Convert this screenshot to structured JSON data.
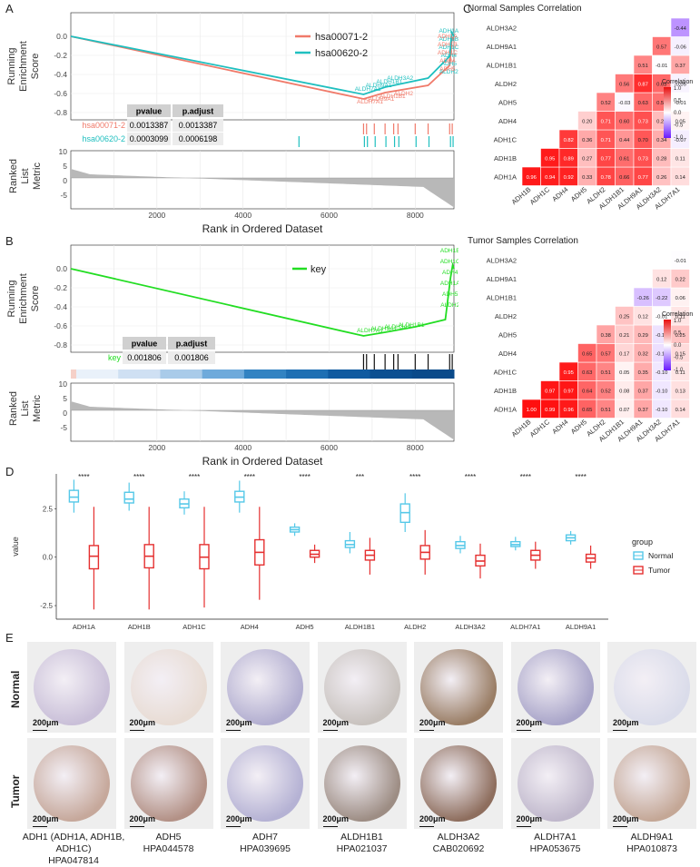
{
  "panels": {
    "A": "A",
    "B": "B",
    "C": "C",
    "D": "D",
    "E": "E"
  },
  "gsea_A": {
    "y_running": [
      "Running",
      "Enrichment",
      "Score"
    ],
    "y_ranked": [
      "Ranked",
      "List",
      "Metric"
    ],
    "x_label": "Rank in Ordered Dataset",
    "x_ticks": [
      "2000",
      "4000",
      "6000",
      "8000"
    ],
    "y_ticks": [
      "0.0",
      "-0.2",
      "-0.4",
      "-0.6",
      "-0.8"
    ],
    "rank_y_ticks": [
      "10",
      "5",
      "0",
      "-5"
    ],
    "legend": [
      {
        "name": "hsa00071-2",
        "color": "#f07a6a"
      },
      {
        "name": "hsa00620-2",
        "color": "#1fbfbf"
      }
    ],
    "table": {
      "headers": [
        "pvalue",
        "p.adjust"
      ],
      "rows": [
        {
          "name": "hsa00071-2",
          "pvalue": "0.0013387",
          "padjust": "0.0013387"
        },
        {
          "name": "hsa00620-2",
          "pvalue": "0.0003099",
          "padjust": "0.0006198"
        }
      ]
    },
    "gene_labels_cyan": [
      "ADH1A",
      "ADH1B",
      "ADH1C",
      "ADH4",
      "ADH5",
      "ALDH2",
      "ALDH3A2",
      "ALDH1B1",
      "ALDH9A1",
      "ALDH7A1"
    ],
    "gene_labels_red": [
      "ADH1A",
      "ADH1B",
      "ADH1C",
      "ADH4",
      "ADH5",
      "ALDH2",
      "ALDH1B1",
      "ALDH9A1",
      "ALDH7A1"
    ]
  },
  "gsea_B": {
    "y_running": [
      "Running",
      "Enrichment",
      "Score"
    ],
    "y_ranked": [
      "Ranked",
      "List",
      "Metric"
    ],
    "x_label": "Rank in Ordered Dataset",
    "x_ticks": [
      "2000",
      "4000",
      "6000",
      "8000"
    ],
    "y_ticks": [
      "0.0",
      "-0.2",
      "-0.4",
      "-0.6",
      "-0.8"
    ],
    "rank_y_ticks": [
      "10",
      "5",
      "0",
      "-5"
    ],
    "legend": [
      {
        "name": "key",
        "color": "#22dd22"
      }
    ],
    "table": {
      "headers": [
        "pvalue",
        "p.adjust"
      ],
      "rows": [
        {
          "name": "key",
          "pvalue": "0.001806",
          "padjust": "0.001806"
        }
      ]
    },
    "gene_labels": [
      "ADH1B",
      "ADH1C",
      "ADH4",
      "ADH1A",
      "ADH5",
      "ALDH2",
      "ALDH1B1",
      "ALDH3A2",
      "ALDH9A1",
      "ALDH7A1"
    ]
  },
  "corr_normal": {
    "title": "Normal Samples Correlation",
    "genes_x": [
      "ADH1B",
      "ADH1C",
      "ADH4",
      "ADH5",
      "ALDH2",
      "ALDH1B1",
      "ALDH9A1",
      "ALDH3A2",
      "ALDH7A1"
    ],
    "genes_y": [
      "ADH1A",
      "ADH1B",
      "ADH1C",
      "ADH4",
      "ADH5",
      "ALDH2",
      "ALDH1B1",
      "ALDH9A1",
      "ALDH3A2"
    ],
    "rows": [
      [
        0.96,
        0.94,
        0.92,
        0.33,
        0.78,
        0.66,
        0.77,
        0.26,
        0.14
      ],
      [
        null,
        0.95,
        0.89,
        0.27,
        0.77,
        0.61,
        0.73,
        0.28,
        0.11
      ],
      [
        null,
        null,
        0.82,
        0.36,
        0.71,
        0.44,
        0.7,
        0.34,
        -0.07
      ],
      [
        null,
        null,
        null,
        0.2,
        0.71,
        0.6,
        0.73,
        0.28,
        0.05
      ],
      [
        null,
        null,
        null,
        null,
        0.52,
        -0.03,
        0.63,
        0.59,
        -0.01
      ],
      [
        null,
        null,
        null,
        null,
        null,
        0.56,
        0.87,
        0.63,
        -0.05
      ],
      [
        null,
        null,
        null,
        null,
        null,
        null,
        0.51,
        -0.01,
        0.37
      ],
      [
        null,
        null,
        null,
        null,
        null,
        null,
        null,
        0.57,
        -0.06
      ],
      [
        null,
        null,
        null,
        null,
        null,
        null,
        null,
        null,
        -0.44
      ]
    ],
    "legend_title": "Correlation",
    "legend_ticks": [
      "1.0",
      "0.5",
      "0.0",
      "-0.5",
      "-1.0"
    ]
  },
  "corr_tumor": {
    "title": "Tumor Samples Correlation",
    "genes_x": [
      "ADH1B",
      "ADH1C",
      "ADH4",
      "ADH5",
      "ALDH2",
      "ALDH1B1",
      "ALDH9A1",
      "ALDH3A2",
      "ALDH7A1"
    ],
    "genes_y": [
      "ADH1A",
      "ADH1B",
      "ADH1C",
      "ADH4",
      "ADH5",
      "ALDH2",
      "ALDH1B1",
      "ALDH9A1",
      "ALDH3A2"
    ],
    "rows": [
      [
        1.0,
        0.99,
        0.96,
        0.65,
        0.51,
        0.07,
        0.37,
        -0.1,
        0.14
      ],
      [
        null,
        0.97,
        0.97,
        0.64,
        0.52,
        0.08,
        0.37,
        -0.1,
        0.13
      ],
      [
        null,
        null,
        0.95,
        0.63,
        0.51,
        0.05,
        0.35,
        -0.1,
        0.11
      ],
      [
        null,
        null,
        null,
        0.65,
        0.57,
        0.17,
        0.32,
        -0.13,
        0.15
      ],
      [
        null,
        null,
        null,
        null,
        0.38,
        0.21,
        0.29,
        -0.12,
        0.25
      ],
      [
        null,
        null,
        null,
        null,
        null,
        0.25,
        0.12,
        -0.01,
        0.11
      ],
      [
        null,
        null,
        null,
        null,
        null,
        null,
        -0.26,
        -0.22,
        0.06
      ],
      [
        null,
        null,
        null,
        null,
        null,
        null,
        null,
        0.12,
        0.22
      ],
      [
        null,
        null,
        null,
        null,
        null,
        null,
        null,
        null,
        -0.01
      ]
    ],
    "legend_title": "Correlation",
    "legend_ticks": [
      "1.0",
      "0.5",
      "0.0",
      "-0.5",
      "-1.0"
    ]
  },
  "chart_data": {
    "type": "box",
    "categories": [
      "ADH1A",
      "ADH1B",
      "ADH1C",
      "ADH4",
      "ADH5",
      "ALDH1B1",
      "ALDH2",
      "ALDH3A2",
      "ALDH7A1",
      "ALDH9A1"
    ],
    "significance": [
      "****",
      "****",
      "****",
      "****",
      "****",
      "***",
      "****",
      "****",
      "****",
      "****"
    ],
    "ylabel": "value",
    "y_ticks": [
      "2.5",
      "0.0",
      "-2.5"
    ],
    "ylim": [
      -3.2,
      4.3
    ],
    "legend_title": "group",
    "series": [
      {
        "name": "Normal",
        "color": "#55c8e8",
        "boxes": [
          {
            "min": 2.3,
            "q1": 2.85,
            "median": 3.1,
            "q3": 3.45,
            "max": 4.0
          },
          {
            "min": 2.4,
            "q1": 2.8,
            "median": 3.0,
            "q3": 3.35,
            "max": 3.85
          },
          {
            "min": 2.2,
            "q1": 2.55,
            "median": 2.75,
            "q3": 3.0,
            "max": 3.4
          },
          {
            "min": 2.3,
            "q1": 2.85,
            "median": 3.1,
            "q3": 3.4,
            "max": 3.95
          },
          {
            "min": 1.1,
            "q1": 1.3,
            "median": 1.42,
            "q3": 1.55,
            "max": 1.75
          },
          {
            "min": 0.2,
            "q1": 0.5,
            "median": 0.65,
            "q3": 0.85,
            "max": 1.3
          },
          {
            "min": 1.3,
            "q1": 1.8,
            "median": 2.3,
            "q3": 2.75,
            "max": 3.3
          },
          {
            "min": 0.2,
            "q1": 0.45,
            "median": 0.6,
            "q3": 0.8,
            "max": 1.1
          },
          {
            "min": 0.35,
            "q1": 0.55,
            "median": 0.65,
            "q3": 0.8,
            "max": 1.05
          },
          {
            "min": 0.65,
            "q1": 0.85,
            "median": 1.0,
            "q3": 1.15,
            "max": 1.35
          }
        ]
      },
      {
        "name": "Tumor",
        "color": "#e53030",
        "boxes": [
          {
            "min": -2.7,
            "q1": -0.6,
            "median": 0.05,
            "q3": 0.6,
            "max": 2.6
          },
          {
            "min": -2.7,
            "q1": -0.55,
            "median": 0.05,
            "q3": 0.65,
            "max": 2.6
          },
          {
            "min": -2.6,
            "q1": -0.6,
            "median": 0.0,
            "q3": 0.65,
            "max": 2.6
          },
          {
            "min": -2.2,
            "q1": -0.4,
            "median": 0.25,
            "q3": 0.9,
            "max": 2.6
          },
          {
            "min": -0.3,
            "q1": 0.0,
            "median": 0.15,
            "q3": 0.35,
            "max": 0.65
          },
          {
            "min": -0.9,
            "q1": -0.15,
            "median": 0.1,
            "q3": 0.35,
            "max": 1.0
          },
          {
            "min": -0.9,
            "q1": -0.1,
            "median": 0.25,
            "q3": 0.6,
            "max": 1.4
          },
          {
            "min": -1.1,
            "q1": -0.45,
            "median": -0.2,
            "q3": 0.1,
            "max": 0.7
          },
          {
            "min": -0.6,
            "q1": -0.15,
            "median": 0.1,
            "q3": 0.35,
            "max": 0.8
          },
          {
            "min": -0.6,
            "q1": -0.25,
            "median": -0.05,
            "q3": 0.15,
            "max": 0.6
          }
        ]
      }
    ]
  },
  "ihc": {
    "row_labels": [
      "Normal",
      "Tumor"
    ],
    "scale": "200μm",
    "columns": [
      {
        "gene": "ADH1 (ADH1A, ADH1B, ADH1C)",
        "antibody": "HPA047814",
        "normal": "#c9bfd8",
        "tumor": "#c6a89b"
      },
      {
        "gene": "ADH5",
        "antibody": "HPA044578",
        "normal": "#e8dcd4",
        "tumor": "#b39186"
      },
      {
        "gene": "ADH7",
        "antibody": "HPA039695",
        "normal": "#b2aed0",
        "tumor": "#b5b2d4"
      },
      {
        "gene": "ALDH1B1",
        "antibody": "HPA021037",
        "normal": "#c8c2be",
        "tumor": "#9d8d84"
      },
      {
        "gene": "ALDH3A2",
        "antibody": "CAB020692",
        "normal": "#9a7e66",
        "tumor": "#8e6e5e"
      },
      {
        "gene": "ALDH7A1",
        "antibody": "HPA053675",
        "normal": "#a9a5c9",
        "tumor": "#c0b8cc"
      },
      {
        "gene": "ALDH9A1",
        "antibody": "HPA010873",
        "normal": "#dadcea",
        "tumor": "#c4a796"
      }
    ]
  }
}
